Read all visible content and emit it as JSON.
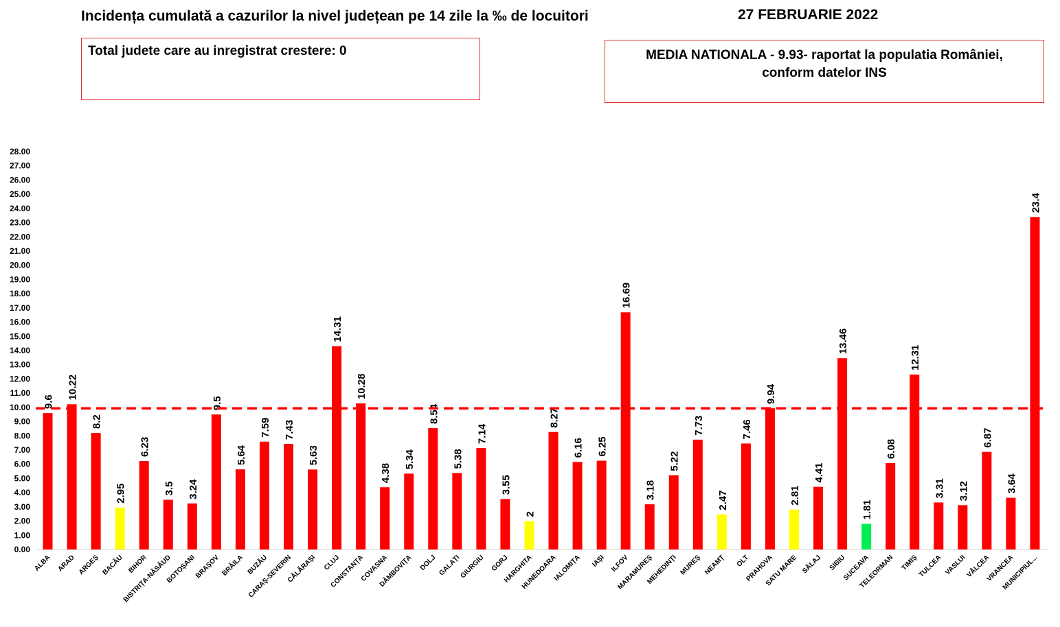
{
  "header": {
    "title": "Incidența cumulată a cazurilor la nivel județean pe 14 zile la ‰ de locuitori",
    "date": "27 FEBRUARIE 2022"
  },
  "info_left": {
    "text": "Total judete care au inregistrat crestere: 0"
  },
  "info_right": {
    "line1": "MEDIA NATIONALA -  9.93-  raportat la populatia României,",
    "line2": "conform datelor INS"
  },
  "colors": {
    "red": "#ff0000",
    "yellow": "#ffff00",
    "green": "#00ee55",
    "reference_line": "#ff0000",
    "box_border": "#e03030"
  },
  "chart_data": {
    "type": "bar",
    "ylim": [
      0,
      28
    ],
    "y_ticks": [
      "0.00",
      "1.00",
      "2.00",
      "3.00",
      "4.00",
      "5.00",
      "6.00",
      "7.00",
      "8.00",
      "9.00",
      "10.00",
      "11.00",
      "12.00",
      "13.00",
      "14.00",
      "15.00",
      "16.00",
      "17.00",
      "18.00",
      "19.00",
      "20.00",
      "21.00",
      "22.00",
      "23.00",
      "24.00",
      "25.00",
      "26.00",
      "27.00",
      "28.00"
    ],
    "reference_value": 9.93,
    "grid": false,
    "categories": [
      "ALBA",
      "ARAD",
      "ARGEȘ",
      "BACĂU",
      "BIHOR",
      "BISTRIȚA-NĂSĂUD",
      "BOTOȘANI",
      "BRAȘOV",
      "BRĂILA",
      "BUZĂU",
      "CARAȘ-SEVERIN",
      "CĂLĂRAȘI",
      "CLUJ",
      "CONSTANȚA",
      "COVASNA",
      "DÂMBOVIȚA",
      "DOLJ",
      "GALAȚI",
      "GIURGIU",
      "GORJ",
      "HARGHITA",
      "HUNEDOARA",
      "IALOMIȚA",
      "IAȘI",
      "ILFOV",
      "MARAMUREȘ",
      "MEHEDINȚI",
      "MUREȘ",
      "NEAMȚ",
      "OLT",
      "PRAHOVA",
      "SATU MARE",
      "SĂLAJ",
      "SIBIU",
      "SUCEAVA",
      "TELEORMAN",
      "TIMIȘ",
      "TULCEA",
      "VASLUI",
      "VÂLCEA",
      "VRANCEA",
      "MUNICIPIUL..."
    ],
    "values": [
      9.6,
      10.22,
      8.2,
      2.95,
      6.23,
      3.5,
      3.24,
      9.5,
      5.64,
      7.59,
      7.43,
      5.63,
      14.31,
      10.28,
      4.38,
      5.34,
      8.54,
      5.38,
      7.14,
      3.55,
      2,
      8.27,
      6.16,
      6.25,
      16.69,
      3.18,
      5.22,
      7.73,
      2.47,
      7.46,
      9.94,
      2.81,
      4.41,
      13.46,
      1.81,
      6.08,
      12.31,
      3.31,
      3.12,
      6.87,
      3.64,
      23.4
    ],
    "labels": [
      "9.6",
      "10.22",
      "8.2",
      "2.95",
      "6.23",
      "3.5",
      "3.24",
      "9.5",
      "5.64",
      "7.59",
      "7.43",
      "5.63",
      "14.31",
      "10.28",
      "4.38",
      "5.34",
      "8.54",
      "5.38",
      "7.14",
      "3.55",
      "2",
      "8.27",
      "6.16",
      "6.25",
      "16.69",
      "3.18",
      "5.22",
      "7.73",
      "2.47",
      "7.46",
      "9.94",
      "2.81",
      "4.41",
      "13.46",
      "1.81",
      "6.08",
      "12.31",
      "3.31",
      "3.12",
      "6.87",
      "3.64",
      "23.4"
    ],
    "bar_colors": [
      "red",
      "red",
      "red",
      "yellow",
      "red",
      "red",
      "red",
      "red",
      "red",
      "red",
      "red",
      "red",
      "red",
      "red",
      "red",
      "red",
      "red",
      "red",
      "red",
      "red",
      "yellow",
      "red",
      "red",
      "red",
      "red",
      "red",
      "red",
      "red",
      "yellow",
      "red",
      "red",
      "yellow",
      "red",
      "red",
      "green",
      "red",
      "red",
      "red",
      "red",
      "red",
      "red",
      "red"
    ]
  }
}
